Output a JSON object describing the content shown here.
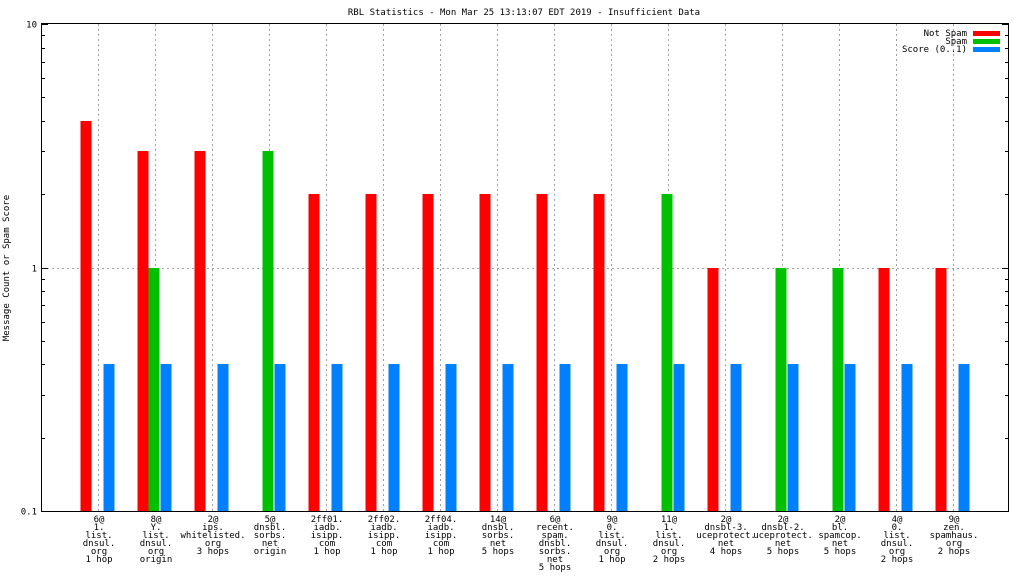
{
  "chart_data": {
    "type": "bar",
    "title": "RBL Statistics - Mon Mar 25 13:13:07 EDT 2019 - Insufficient Data",
    "ylabel": "Message Count or Spam Score",
    "xlabel": "",
    "yscale": "log",
    "ylim": [
      0.1,
      10
    ],
    "yticks": [
      "0.1",
      "1",
      "10"
    ],
    "grid": true,
    "legend_position": "top-right",
    "colors": {
      "Not Spam": "#ff0000",
      "Spam": "#00c000",
      "Score (0..1)": "#0080ff"
    },
    "categories": [
      [
        "6@",
        "1.",
        "list.",
        "dnsul.",
        "org",
        "1 hop"
      ],
      [
        "8@",
        "Y.",
        "list.",
        "dnsul.",
        "org",
        "origin"
      ],
      [
        "2@",
        "ips.",
        "whitelisted.",
        "org",
        "3 hops"
      ],
      [
        "5@",
        "dnsbl.",
        "sorbs.",
        "net",
        "origin"
      ],
      [
        "2ff01.",
        "iadb.",
        "isipp.",
        "com",
        "1 hop"
      ],
      [
        "2ff02.",
        "iadb.",
        "isipp.",
        "com",
        "1 hop"
      ],
      [
        "2ff04.",
        "iadb.",
        "isipp.",
        "com",
        "1 hop"
      ],
      [
        "14@",
        "dnsbl.",
        "sorbs.",
        "net",
        "5 hops"
      ],
      [
        "6@",
        "recent.",
        "spam.",
        "dnsbl.",
        "sorbs.",
        "net",
        "5 hops"
      ],
      [
        "9@",
        "0.",
        "list.",
        "dnsul.",
        "org",
        "1 hop"
      ],
      [
        "11@",
        "1.",
        "list.",
        "dnsul.",
        "org",
        "2 hops"
      ],
      [
        "2@",
        "dnsbl-3.",
        "uceprotect.",
        "net",
        "4 hops"
      ],
      [
        "2@",
        "dnsbl-2.",
        "uceprotect.",
        "net",
        "5 hops"
      ],
      [
        "2@",
        "bl.",
        "spamcop.",
        "net",
        "5 hops"
      ],
      [
        "4@",
        "0.",
        "list.",
        "dnsul.",
        "org",
        "2 hops"
      ],
      [
        "9@",
        "zen.",
        "spamhaus.",
        "org",
        "2 hops"
      ]
    ],
    "series": [
      {
        "name": "Not Spam",
        "values": [
          4,
          3,
          3,
          0,
          2,
          2,
          2,
          2,
          2,
          2,
          0,
          1,
          0,
          0,
          1,
          1
        ]
      },
      {
        "name": "Spam",
        "values": [
          0,
          1,
          0,
          3,
          0,
          0,
          0,
          0,
          0,
          0,
          2,
          0,
          1,
          1,
          0,
          0
        ]
      },
      {
        "name": "Score (0..1)",
        "values": [
          0.4,
          0.4,
          0.4,
          0.4,
          0.4,
          0.4,
          0.4,
          0.4,
          0.4,
          0.4,
          0.4,
          0.4,
          0.4,
          0.4,
          0.4,
          0.4
        ]
      }
    ]
  }
}
